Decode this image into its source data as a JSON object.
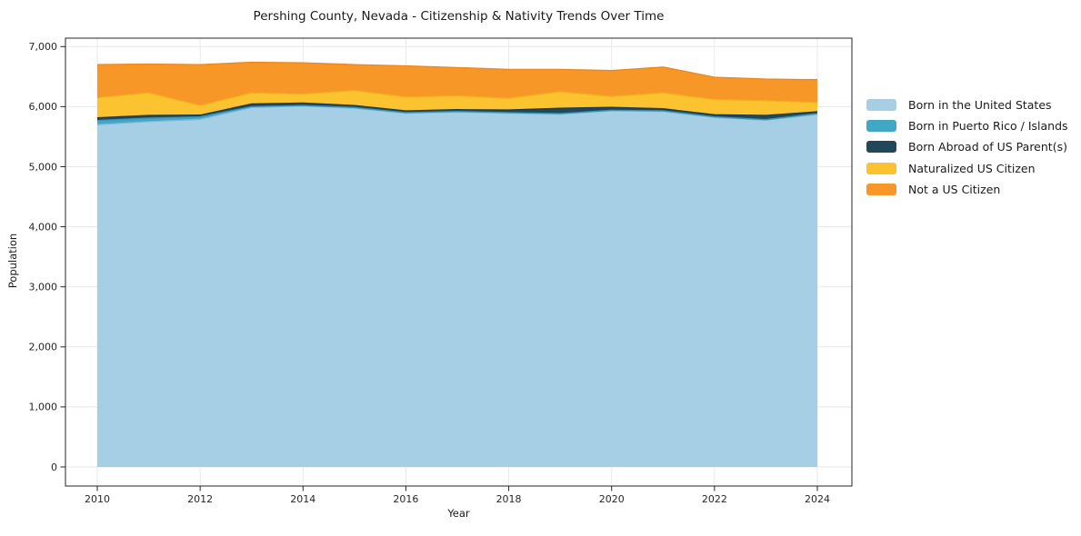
{
  "chart_data": {
    "type": "area",
    "stacked": true,
    "title": "Pershing County, Nevada - Citizenship & Nativity Trends Over Time",
    "xlabel": "Year",
    "ylabel": "Population",
    "x": [
      2010,
      2011,
      2012,
      2013,
      2014,
      2015,
      2016,
      2017,
      2018,
      2019,
      2020,
      2021,
      2022,
      2023,
      2024
    ],
    "xticks": [
      2010,
      2012,
      2014,
      2016,
      2018,
      2020,
      2022,
      2024
    ],
    "yticks": [
      0,
      1000,
      2000,
      3000,
      4000,
      5000,
      6000,
      7000
    ],
    "ylim": [
      0,
      7000
    ],
    "xlim": [
      2009.4,
      2024.67
    ],
    "grid": true,
    "legend_position": "right",
    "series": [
      {
        "name": "Born in the United States",
        "color": "#a6cfe5",
        "edge": "#7db8d9",
        "values": [
          5700,
          5750,
          5790,
          5985,
          6010,
          5975,
          5890,
          5910,
          5890,
          5875,
          5930,
          5920,
          5820,
          5775,
          5870
        ]
      },
      {
        "name": "Born in Puerto Rico / Islands",
        "color": "#42a7c5",
        "edge": "#3795b4",
        "values": [
          70,
          60,
          40,
          15,
          10,
          10,
          10,
          10,
          10,
          10,
          10,
          10,
          10,
          10,
          15
        ]
      },
      {
        "name": "Born Abroad of US Parent(s)",
        "color": "#23475a",
        "edge": "#1d3d4e",
        "values": [
          45,
          45,
          30,
          45,
          40,
          35,
          30,
          30,
          45,
          90,
          50,
          35,
          35,
          70,
          30
        ]
      },
      {
        "name": "Naturalized US Citizen",
        "color": "#fcc330",
        "edge": "#f2ae1e",
        "values": [
          335,
          375,
          160,
          185,
          150,
          250,
          230,
          230,
          195,
          275,
          180,
          265,
          255,
          245,
          155
        ]
      },
      {
        "name": "Not a US Citizen",
        "color": "#f79728",
        "edge": "#ee861c",
        "values": [
          550,
          480,
          680,
          510,
          520,
          430,
          520,
          470,
          480,
          370,
          430,
          430,
          370,
          360,
          380
        ]
      }
    ]
  },
  "colors": {
    "grid": "#e7e7e7",
    "frame": "#262626",
    "background": "#ffffff"
  }
}
